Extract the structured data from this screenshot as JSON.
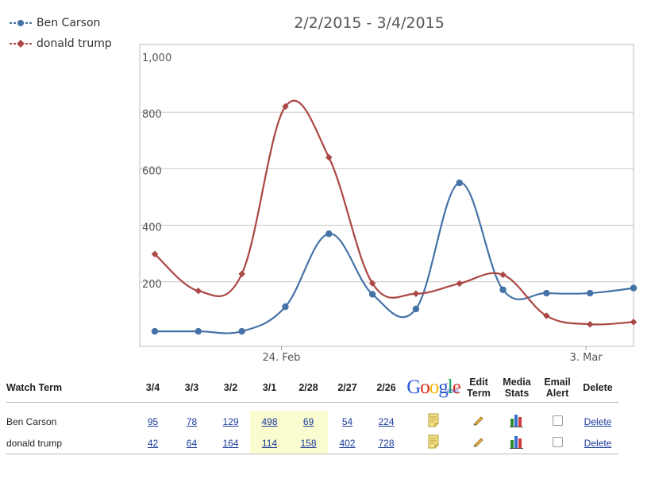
{
  "legend": {
    "series": [
      {
        "name": "Ben Carson",
        "color": "#4572a7"
      },
      {
        "name": "donald trump",
        "color": "#aa4643"
      }
    ]
  },
  "chart_title": "2/2/2015 - 3/4/2015",
  "chart_data": {
    "type": "line",
    "title": "2/2/2015 - 3/4/2015",
    "xlabel": "",
    "ylabel": "",
    "x": [
      "2/21",
      "2/22",
      "2/23",
      "2/24",
      "2/25",
      "2/26",
      "2/27",
      "2/28",
      "3/1",
      "3/2",
      "3/3",
      "3/4"
    ],
    "x_tick_labels": [
      "24. Feb",
      "3. Mar"
    ],
    "y_tick_labels": [
      "200",
      "400",
      "600",
      "800",
      "1,000"
    ],
    "ylim": [
      0,
      1000
    ],
    "grid": true,
    "series": [
      {
        "name": "Ben Carson",
        "color": "#4572a7",
        "values": [
          25,
          25,
          25,
          112,
          370,
          156,
          104,
          550,
          172,
          160,
          160,
          178
        ]
      },
      {
        "name": "donald trump",
        "color": "#aa4643",
        "values": [
          298,
          168,
          228,
          820,
          640,
          195,
          158,
          194,
          225,
          80,
          50,
          58
        ]
      }
    ]
  },
  "table": {
    "headers": {
      "term": "Watch Term",
      "dates": [
        "3/4",
        "3/3",
        "3/2",
        "3/1",
        "2/28",
        "2/27",
        "2/26"
      ],
      "google": "Google",
      "google_news": "News",
      "edit": [
        "Edit",
        "Term"
      ],
      "media": [
        "Media",
        "Stats"
      ],
      "email": [
        "Email",
        "Alert"
      ],
      "delete": "Delete"
    },
    "rows": [
      {
        "term": "Ben Carson",
        "counts": [
          "95",
          "78",
          "129",
          "498",
          "69",
          "54",
          "224"
        ],
        "delete_label": "Delete"
      },
      {
        "term": "donald trump",
        "counts": [
          "42",
          "64",
          "164",
          "114",
          "158",
          "402",
          "728"
        ],
        "delete_label": "Delete"
      }
    ],
    "highlight_color": "#fbfbd0"
  }
}
